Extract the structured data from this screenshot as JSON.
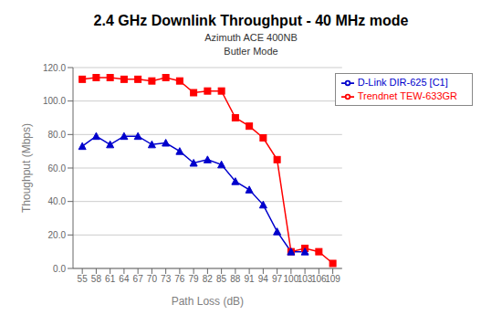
{
  "chart_data": {
    "type": "line",
    "title": "2.4 GHz Downlink Throughput - 40 MHz mode",
    "subtitle": [
      "Azimuth ACE 400NB",
      "Butler Mode"
    ],
    "x_label": "Path Loss (dB)",
    "y_label": "Thoughput (Mbps)",
    "xlim": [
      53,
      111
    ],
    "xticks": [
      55,
      58,
      61,
      64,
      67,
      70,
      73,
      76,
      79,
      82,
      85,
      88,
      91,
      94,
      97,
      100,
      103,
      106,
      109
    ],
    "ylim": [
      0,
      120
    ],
    "yticks": [
      {
        "value": 0,
        "label": "0.0"
      },
      {
        "value": 20,
        "label": "20.0"
      },
      {
        "value": 40,
        "label": "40.0"
      },
      {
        "value": 60,
        "label": "60.0"
      },
      {
        "value": 80,
        "label": "80.0"
      },
      {
        "value": 100,
        "label": "100.0"
      },
      {
        "value": 120,
        "label": "120.0"
      }
    ],
    "grid": "y",
    "legend": "upper right",
    "series": [
      {
        "name": "Trendnet TEW-633GR",
        "color": "#FF0000",
        "marker": "square",
        "x": [
          55,
          58,
          61,
          64,
          67,
          70,
          73,
          76,
          79,
          82,
          85,
          88,
          91,
          94,
          97,
          100,
          103,
          106,
          109
        ],
        "values": [
          113,
          114,
          114,
          113,
          113,
          112,
          114,
          112,
          105,
          106,
          106,
          90,
          85,
          78,
          65,
          10,
          12,
          10,
          3
        ]
      },
      {
        "name": "D-Link DIR-625 [C1]",
        "color": "#0000CC",
        "marker": "triangle",
        "x": [
          55,
          58,
          61,
          64,
          67,
          70,
          73,
          76,
          79,
          82,
          85,
          88,
          91,
          94,
          97,
          100,
          103
        ],
        "values": [
          73,
          79,
          74,
          79,
          79,
          74,
          75,
          70,
          63,
          65,
          62,
          52,
          47,
          38,
          22,
          10,
          10
        ]
      }
    ]
  }
}
